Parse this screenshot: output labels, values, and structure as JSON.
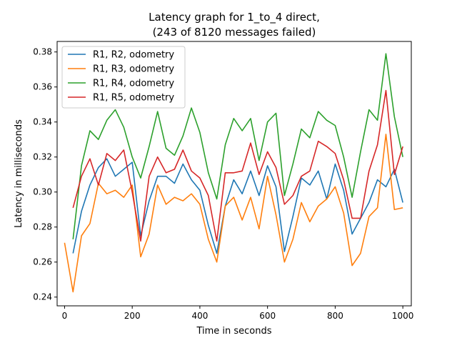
{
  "chart_data": {
    "type": "line",
    "title": "Latency graph for 1_to_4 direct,",
    "subtitle": "(243 of 8120 messages failed)",
    "xlabel": "Time in seconds",
    "ylabel": "Latency in milliseconds",
    "xlim": [
      -22,
      1025
    ],
    "ylim": [
      0.235,
      0.386
    ],
    "xticks": [
      0,
      200,
      400,
      600,
      800,
      1000
    ],
    "xtick_labels": [
      "0",
      "200",
      "400",
      "600",
      "800",
      "1000"
    ],
    "yticks": [
      0.24,
      0.26,
      0.28,
      0.3,
      0.32,
      0.34,
      0.36,
      0.38
    ],
    "ytick_labels": [
      "0.24",
      "0.26",
      "0.28",
      "0.30",
      "0.32",
      "0.34",
      "0.36",
      "0.38"
    ],
    "grid": false,
    "legend_position": "top-left",
    "series": [
      {
        "name": "R1, R2, odometry",
        "color": "#1f77b4",
        "x": [
          25,
          50,
          75,
          100,
          125,
          150,
          175,
          200,
          225,
          250,
          275,
          300,
          325,
          350,
          375,
          400,
          425,
          450,
          475,
          500,
          525,
          550,
          575,
          600,
          625,
          650,
          675,
          700,
          725,
          750,
          775,
          800,
          825,
          850,
          875,
          900,
          925,
          950,
          975,
          1000
        ],
        "y": [
          0.265,
          0.289,
          0.304,
          0.314,
          0.319,
          0.309,
          0.313,
          0.317,
          0.275,
          0.295,
          0.309,
          0.309,
          0.305,
          0.316,
          0.307,
          0.301,
          0.281,
          0.265,
          0.292,
          0.307,
          0.299,
          0.312,
          0.298,
          0.315,
          0.303,
          0.266,
          0.286,
          0.308,
          0.304,
          0.312,
          0.296,
          0.316,
          0.301,
          0.276,
          0.285,
          0.294,
          0.307,
          0.303,
          0.313,
          0.294
        ]
      },
      {
        "name": "R1, R3, odometry",
        "color": "#ff7f0e",
        "x": [
          0,
          25,
          50,
          75,
          100,
          125,
          150,
          175,
          200,
          225,
          250,
          275,
          300,
          325,
          350,
          375,
          400,
          425,
          450,
          475,
          500,
          525,
          550,
          575,
          600,
          625,
          650,
          675,
          700,
          725,
          750,
          775,
          800,
          825,
          850,
          875,
          900,
          925,
          950,
          975,
          1000
        ],
        "y": [
          0.271,
          0.243,
          0.275,
          0.282,
          0.305,
          0.299,
          0.301,
          0.297,
          0.304,
          0.263,
          0.276,
          0.304,
          0.293,
          0.297,
          0.295,
          0.299,
          0.293,
          0.273,
          0.26,
          0.292,
          0.297,
          0.284,
          0.297,
          0.279,
          0.309,
          0.287,
          0.26,
          0.273,
          0.294,
          0.283,
          0.292,
          0.296,
          0.303,
          0.288,
          0.258,
          0.265,
          0.286,
          0.291,
          0.333,
          0.29,
          0.291
        ]
      },
      {
        "name": "R1, R4, odometry",
        "color": "#2ca02c",
        "x": [
          25,
          50,
          75,
          100,
          125,
          150,
          175,
          200,
          225,
          250,
          275,
          300,
          325,
          350,
          375,
          400,
          425,
          450,
          475,
          500,
          525,
          550,
          575,
          600,
          625,
          650,
          675,
          700,
          725,
          750,
          775,
          800,
          825,
          850,
          875,
          900,
          925,
          950,
          975,
          1000
        ],
        "y": [
          0.273,
          0.315,
          0.335,
          0.33,
          0.341,
          0.347,
          0.337,
          0.32,
          0.308,
          0.326,
          0.346,
          0.325,
          0.321,
          0.332,
          0.348,
          0.334,
          0.311,
          0.296,
          0.327,
          0.342,
          0.335,
          0.342,
          0.318,
          0.34,
          0.345,
          0.298,
          0.316,
          0.336,
          0.331,
          0.346,
          0.341,
          0.338,
          0.32,
          0.297,
          0.323,
          0.347,
          0.341,
          0.379,
          0.343,
          0.32
        ]
      },
      {
        "name": "R1, R5, odometry",
        "color": "#d62728",
        "x": [
          25,
          50,
          75,
          100,
          125,
          150,
          175,
          200,
          225,
          250,
          275,
          300,
          325,
          350,
          375,
          400,
          425,
          450,
          475,
          500,
          525,
          550,
          575,
          600,
          625,
          650,
          675,
          700,
          725,
          750,
          775,
          800,
          825,
          850,
          875,
          900,
          925,
          950,
          975,
          1000
        ],
        "y": [
          0.291,
          0.309,
          0.319,
          0.304,
          0.322,
          0.318,
          0.324,
          0.3,
          0.272,
          0.309,
          0.32,
          0.311,
          0.313,
          0.324,
          0.312,
          0.308,
          0.298,
          0.272,
          0.311,
          0.311,
          0.312,
          0.328,
          0.31,
          0.323,
          0.314,
          0.293,
          0.298,
          0.309,
          0.312,
          0.329,
          0.326,
          0.322,
          0.307,
          0.285,
          0.285,
          0.312,
          0.327,
          0.358,
          0.31,
          0.326
        ]
      }
    ]
  }
}
